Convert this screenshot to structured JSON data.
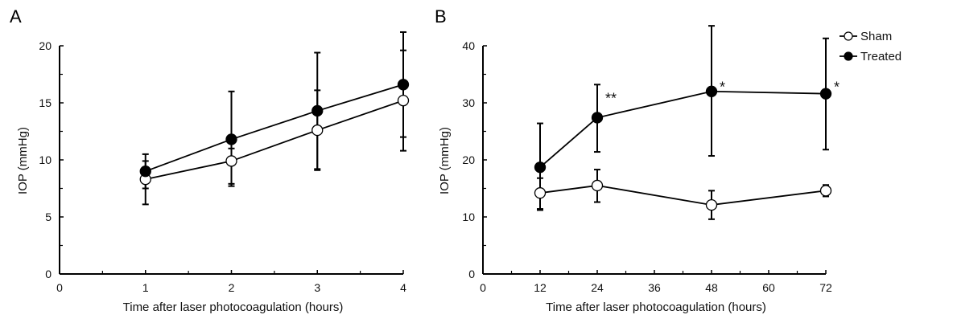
{
  "chart_data": [
    {
      "panel": "A",
      "type": "line",
      "xlabel": "Time after laser photocoagulation (hours)",
      "ylabel": "IOP (mmHg)",
      "xlim": [
        0,
        4
      ],
      "ylim": [
        0,
        20
      ],
      "xticks": [
        0,
        1,
        2,
        3,
        4
      ],
      "xminor": [
        0.5,
        1.5,
        2.5,
        3.5
      ],
      "yticks": [
        0,
        5,
        10,
        15,
        20
      ],
      "yminor": [
        2.5,
        7.5,
        12.5,
        17.5
      ],
      "grid": false,
      "series": [
        {
          "name": "Sham",
          "marker": "open-circle",
          "x": [
            1,
            2,
            3,
            4
          ],
          "y": [
            8.3,
            9.9,
            12.6,
            15.2
          ],
          "err_upper": [
            9.9,
            11.0,
            16.1,
            19.6
          ],
          "err_lower": [
            6.1,
            7.9,
            9.1,
            10.8
          ]
        },
        {
          "name": "Treated",
          "marker": "filled-circle",
          "x": [
            1,
            2,
            3,
            4
          ],
          "y": [
            9.0,
            11.8,
            14.3,
            16.6
          ],
          "err_upper": [
            10.5,
            16.0,
            19.4,
            21.2
          ],
          "err_lower": [
            7.5,
            7.7,
            9.2,
            12.0
          ]
        }
      ],
      "annotations": []
    },
    {
      "panel": "B",
      "type": "line",
      "xlabel": "Time after laser photocoagulation (hours)",
      "ylabel": "IOP (mmHg)",
      "xlim": [
        0,
        72
      ],
      "ylim": [
        0,
        40
      ],
      "xticks": [
        0,
        12,
        24,
        36,
        48,
        60,
        72
      ],
      "xminor": [
        6,
        18,
        30,
        42,
        54,
        66
      ],
      "yticks": [
        0,
        10,
        20,
        30,
        40
      ],
      "yminor": [
        5,
        15,
        25,
        35
      ],
      "grid": false,
      "legend": {
        "position": "top-right",
        "entries": [
          "Sham",
          "Treated"
        ]
      },
      "series": [
        {
          "name": "Sham",
          "marker": "open-circle",
          "x": [
            12,
            24,
            48,
            72
          ],
          "y": [
            14.2,
            15.5,
            12.1,
            14.6
          ],
          "err_upper": [
            16.8,
            18.3,
            14.6,
            15.6
          ],
          "err_lower": [
            11.2,
            12.6,
            9.6,
            13.6
          ]
        },
        {
          "name": "Treated",
          "marker": "filled-circle",
          "x": [
            12,
            24,
            48,
            72
          ],
          "y": [
            18.7,
            27.4,
            32.0,
            31.6
          ],
          "err_upper": [
            26.4,
            33.2,
            43.5,
            41.3
          ],
          "err_lower": [
            11.4,
            21.4,
            20.7,
            21.8
          ]
        }
      ],
      "annotations": [
        {
          "text": "**",
          "x": 24,
          "y": 30.5
        },
        {
          "text": "*",
          "x": 48,
          "y": 32.5
        },
        {
          "text": "*",
          "x": 72,
          "y": 32.5
        }
      ]
    }
  ]
}
